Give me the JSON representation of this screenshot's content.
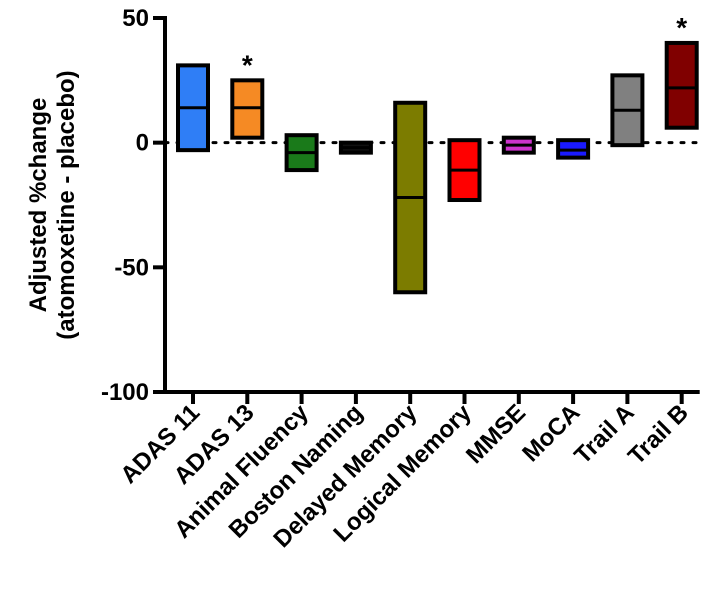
{
  "chart_data": {
    "type": "floating-bar",
    "ylabel_lines": [
      "Adjusted %change",
      "(atomoxetine - placebo)"
    ],
    "ylim": [
      -100,
      50
    ],
    "yticks": [
      50,
      0,
      -50,
      -100
    ],
    "reference_line": 0,
    "categories": [
      "ADAS 11",
      "ADAS 13",
      "Animal Fluency",
      "Boston Naming",
      "Delayed Memory",
      "Logical Memory",
      "MMSE",
      "MoCA",
      "Trail A",
      "Trail B"
    ],
    "series": [
      {
        "category": "ADAS 11",
        "min": -3,
        "mean": 14,
        "max": 31,
        "color": "#2f7ef6",
        "significant": false
      },
      {
        "category": "ADAS 13",
        "min": 2,
        "mean": 14,
        "max": 25,
        "color": "#f58a24",
        "significant": true
      },
      {
        "category": "Animal Fluency",
        "min": -11,
        "mean": -4,
        "max": 3,
        "color": "#1a7a1a",
        "significant": false
      },
      {
        "category": "Boston Naming",
        "min": -4,
        "mean": -2,
        "max": 0,
        "color": "#111111",
        "significant": false
      },
      {
        "category": "Delayed Memory",
        "min": -60,
        "mean": -22,
        "max": 16,
        "color": "#7c7c00",
        "significant": false
      },
      {
        "category": "Logical Memory",
        "min": -23,
        "mean": -11,
        "max": 1,
        "color": "#ff0000",
        "significant": false
      },
      {
        "category": "MMSE",
        "min": -4,
        "mean": -1,
        "max": 2,
        "color": "#cc33cc",
        "significant": false
      },
      {
        "category": "MoCA",
        "min": -6,
        "mean": -3,
        "max": 1,
        "color": "#1a1aff",
        "significant": false
      },
      {
        "category": "Trail A",
        "min": -1,
        "mean": 13,
        "max": 27,
        "color": "#808080",
        "significant": false
      },
      {
        "category": "Trail B",
        "min": 6,
        "mean": 22,
        "max": 40,
        "color": "#800000",
        "significant": true
      }
    ],
    "significance_marker": "*",
    "grid": false,
    "legend": "none"
  }
}
